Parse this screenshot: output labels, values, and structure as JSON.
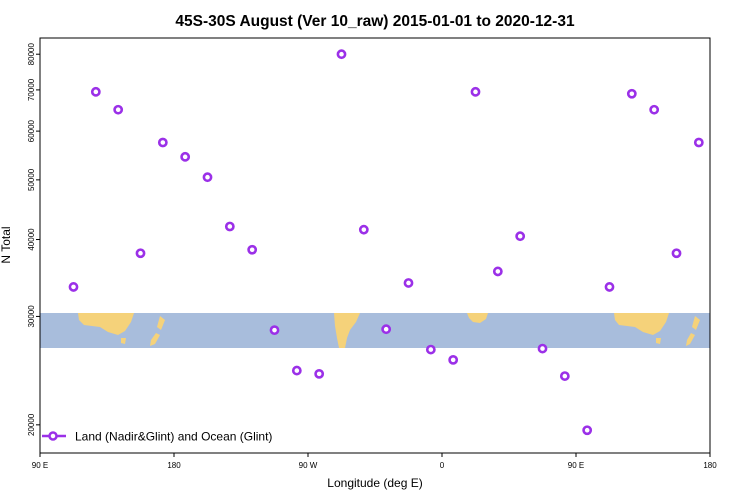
{
  "colors": {
    "point": "#9b30e8",
    "ocean": "#a8bddc",
    "land": "#f5d27a",
    "axis": "#000000"
  },
  "chart_data": {
    "type": "scatter",
    "title": "45S-30S August (Ver 10_raw)   2015-01-01 to 2020-12-31",
    "xlabel": "Longitude (deg E)",
    "ylabel": "N Total",
    "xlim": [
      90,
      540
    ],
    "ylim": [
      18000,
      85000
    ],
    "y_scale": "log",
    "x_ticks": [
      {
        "value": 90,
        "label": "90 E"
      },
      {
        "value": 180,
        "label": "180"
      },
      {
        "value": 270,
        "label": "90 W"
      },
      {
        "value": 360,
        "label": "0"
      },
      {
        "value": 450,
        "label": "90 E"
      },
      {
        "value": 540,
        "label": "180"
      }
    ],
    "y_ticks": [
      {
        "value": 20000,
        "label": "20000"
      },
      {
        "value": 30000,
        "label": "30000"
      },
      {
        "value": 40000,
        "label": "40000"
      },
      {
        "value": 50000,
        "label": "50000"
      },
      {
        "value": 60000,
        "label": "60000"
      },
      {
        "value": 70000,
        "label": "70000"
      },
      {
        "value": 80000,
        "label": "80000"
      }
    ],
    "legend": {
      "label": "Land (Nadir&Glint) and Ocean (Glint)",
      "position": "bottom-left"
    },
    "series": [
      {
        "name": "Land (Nadir&Glint) and Ocean (Glint)",
        "x": [
          112.5,
          127.5,
          142.5,
          157.5,
          172.5,
          187.5,
          202.5,
          217.5,
          232.5,
          247.5,
          262.5,
          277.5,
          292.5,
          307.5,
          322.5,
          337.5,
          352.5,
          367.5,
          382.5,
          397.5,
          412.5,
          427.5,
          442.5,
          457.5,
          472.5,
          487.5,
          502.5,
          517.5,
          532.5
        ],
        "y": [
          33500,
          69500,
          65000,
          38000,
          57500,
          54500,
          50500,
          42000,
          38500,
          28500,
          24500,
          24200,
          80000,
          41500,
          28600,
          34000,
          26500,
          25500,
          69500,
          35500,
          40500,
          26600,
          24000,
          19600,
          33500,
          69000,
          65000,
          38000,
          57500
        ]
      }
    ]
  }
}
